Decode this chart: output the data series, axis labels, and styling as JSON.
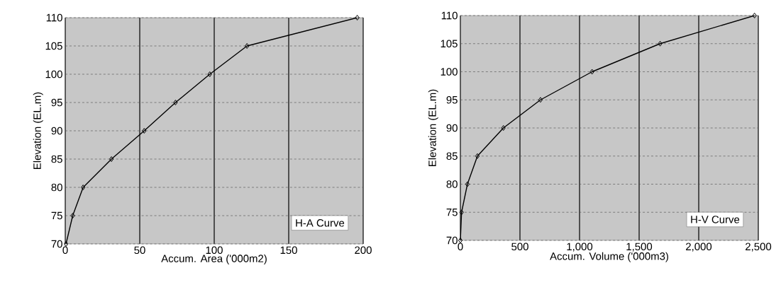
{
  "chart_data": [
    {
      "type": "line",
      "xlabel": "Accum. Area ('000m2)",
      "ylabel": "Elevation (EL.m)",
      "x": [
        0.5,
        5,
        12,
        31,
        53,
        74,
        97,
        122,
        196
      ],
      "series": [
        {
          "color": "#000000",
          "values": [
            70,
            75,
            80,
            85,
            90,
            95,
            100,
            105,
            110
          ]
        }
      ],
      "xlim": [
        0,
        200
      ],
      "xticks": [
        0,
        50,
        100,
        150,
        200
      ],
      "ylim": [
        70,
        110
      ],
      "yticks": [
        70,
        75,
        80,
        85,
        90,
        95,
        100,
        105,
        110
      ],
      "grid": true,
      "marker": "diamond",
      "line_style": "solid",
      "annotations": [
        "H-A Curve"
      ]
    },
    {
      "type": "line",
      "xlabel": "Accum. Volume ('000m3)",
      "ylabel": "Elevation (EL.m)",
      "x": [
        0,
        10,
        59,
        143,
        361,
        672,
        1105,
        1676,
        2468
      ],
      "series": [
        {
          "color": "#000000",
          "values": [
            70,
            75,
            80,
            85,
            90,
            95,
            100,
            105,
            110
          ]
        }
      ],
      "xlim": [
        0,
        2500
      ],
      "xticks": [
        0,
        500,
        {
          "value": 1000,
          "label": "1,000"
        },
        {
          "value": 1500,
          "label": "1,500"
        },
        {
          "value": 2000,
          "label": "2,000"
        },
        {
          "value": 2500,
          "label": "2,500"
        }
      ],
      "ylim": [
        70,
        110
      ],
      "yticks": [
        70,
        75,
        80,
        85,
        90,
        95,
        100,
        105,
        110
      ],
      "grid": true,
      "marker": "diamond",
      "line_style": "solid",
      "annotations": [
        "H-V Curve"
      ]
    }
  ]
}
